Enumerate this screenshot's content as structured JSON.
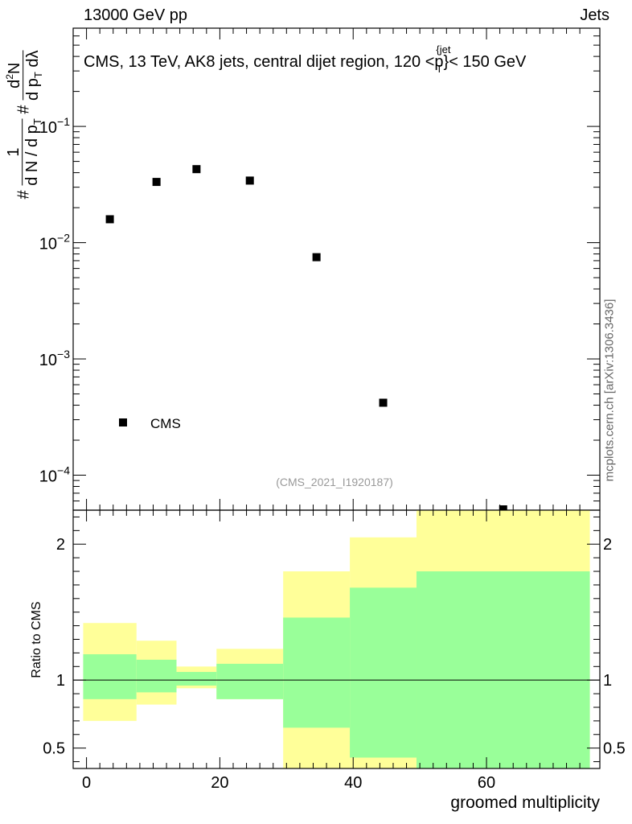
{
  "header": {
    "left": "13000 GeV pp",
    "right": "Jets"
  },
  "side_label": "mcplots.cern.ch [arXiv:1306.3436]",
  "analysis_tag": "(CMS_2021_I1920187)",
  "chart_data": [
    {
      "type": "scatter",
      "title": "CMS, 13 TeV, AK8 jets, central dijet region, 120 < p_T^{jet} < 150 GeV",
      "ylabel": "1/(dN/dp_T) d²N/(dp_T dλ)",
      "yscale": "log",
      "ylim": [
        5e-05,
        0.7
      ],
      "xlim": [
        -2,
        77
      ],
      "grid": false,
      "legend": {
        "position": "bottom-left",
        "entries": [
          "CMS"
        ]
      },
      "y_tick_labels": [
        "10^-4",
        "10^-3",
        "10^-2",
        "10^-1"
      ],
      "series": [
        {
          "name": "CMS",
          "marker": "filled-square",
          "color": "#000000",
          "x": [
            3.5,
            10.5,
            16.5,
            24.5,
            34.5,
            44.5,
            62.5
          ],
          "y": [
            0.0159,
            0.0333,
            0.0429,
            0.0342,
            0.0075,
            0.00042,
            4.8e-05
          ]
        }
      ]
    },
    {
      "type": "area",
      "ylabel": "Ratio to CMS",
      "xlabel": "groomed multiplicity",
      "xlim": [
        -2,
        77
      ],
      "ylim": [
        0.35,
        2.25
      ],
      "x_ticks": [
        0,
        20,
        40,
        60
      ],
      "y_ticks": [
        0.5,
        1,
        2
      ],
      "reference_line": 1,
      "colors": {
        "outer_band": "#ffff99",
        "inner_band": "#99ff99",
        "line": "#000000"
      },
      "bins": [
        {
          "x_low": -0.5,
          "x_high": 7.5,
          "outer": [
            0.7,
            1.42
          ],
          "inner": [
            0.86,
            1.19
          ]
        },
        {
          "x_low": 7.5,
          "x_high": 13.5,
          "outer": [
            0.82,
            1.29
          ],
          "inner": [
            0.91,
            1.15
          ]
        },
        {
          "x_low": 13.5,
          "x_high": 19.5,
          "outer": [
            0.94,
            1.1
          ],
          "inner": [
            0.96,
            1.06
          ]
        },
        {
          "x_low": 19.5,
          "x_high": 29.5,
          "outer": [
            0.86,
            1.23
          ],
          "inner": [
            0.86,
            1.12
          ]
        },
        {
          "x_low": 29.5,
          "x_high": 39.5,
          "outer": [
            0.3,
            1.8
          ],
          "inner": [
            0.65,
            1.46
          ]
        },
        {
          "x_low": 39.5,
          "x_high": 49.5,
          "outer": [
            0.3,
            2.05
          ],
          "inner": [
            0.43,
            1.68
          ]
        },
        {
          "x_low": 49.5,
          "x_high": 75.5,
          "outer": [
            0.3,
            2.28
          ],
          "inner": [
            0.3,
            1.8
          ]
        }
      ]
    }
  ]
}
